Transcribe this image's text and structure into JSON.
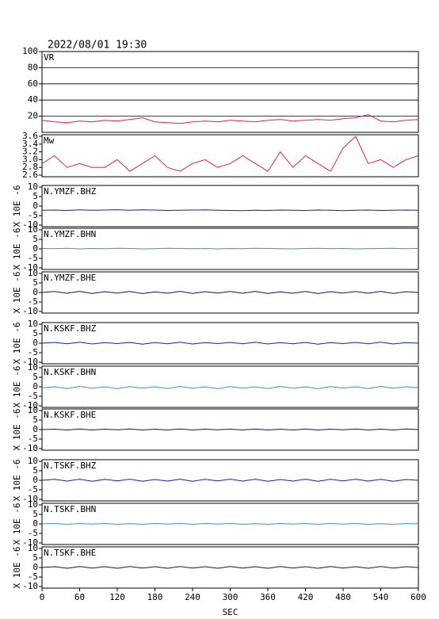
{
  "chart_data": [
    {
      "type": "line",
      "title": "2022/08/01 19:30",
      "label": "VR",
      "ylim": [
        0,
        100
      ],
      "yticks": [
        20,
        40,
        60,
        80,
        100
      ],
      "grid": true,
      "color": "#e0204f",
      "x": [
        0,
        20,
        40,
        60,
        80,
        100,
        120,
        140,
        160,
        180,
        200,
        220,
        240,
        260,
        280,
        300,
        320,
        340,
        360,
        380,
        400,
        420,
        440,
        460,
        480,
        500,
        520,
        540,
        560,
        580,
        600
      ],
      "values": [
        15,
        13,
        12,
        14,
        13,
        15,
        14,
        16,
        18,
        13,
        12,
        11,
        13,
        14,
        13,
        15,
        14,
        13,
        15,
        16,
        14,
        15,
        16,
        15,
        17,
        18,
        22,
        14,
        13,
        15,
        16
      ]
    },
    {
      "type": "line",
      "label": "Mw",
      "ylim": [
        2.6,
        3.6
      ],
      "yticks": [
        2.6,
        2.8,
        {
          "value": 3,
          "label": "3.0"
        },
        3.2,
        3.4,
        3.6
      ],
      "grid": false,
      "color": "#e0204f",
      "x": [
        0,
        20,
        40,
        60,
        80,
        100,
        120,
        140,
        160,
        180,
        200,
        220,
        240,
        260,
        280,
        300,
        320,
        340,
        360,
        380,
        400,
        420,
        440,
        460,
        480,
        500,
        520,
        540,
        560,
        580,
        600
      ],
      "values": [
        2.9,
        3.1,
        2.8,
        2.9,
        2.8,
        2.8,
        3.0,
        2.7,
        2.9,
        3.1,
        2.8,
        2.7,
        2.9,
        3.0,
        2.8,
        2.9,
        3.1,
        2.9,
        2.7,
        3.2,
        2.8,
        3.1,
        2.9,
        2.7,
        3.3,
        3.6,
        2.9,
        3.0,
        2.8,
        3.0,
        3.1
      ]
    },
    {
      "type": "line",
      "label": "N.YMZF.BHZ",
      "ylabel": "X 10E -6",
      "ylim": [
        -10,
        10
      ],
      "yticks": [
        -10,
        -5,
        0,
        5,
        10
      ],
      "color": "#1c1ca8",
      "x": [
        0,
        20,
        40,
        60,
        80,
        100,
        120,
        140,
        160,
        180,
        200,
        220,
        240,
        260,
        280,
        300,
        320,
        340,
        360,
        380,
        400,
        420,
        440,
        460,
        480,
        500,
        520,
        540,
        560,
        580,
        600
      ],
      "values": [
        -2.2,
        -2.1,
        -2.3,
        -2.0,
        -2.2,
        -2.1,
        -1.9,
        -2.2,
        -2.0,
        -2.1,
        -2.3,
        -2.2,
        -2.1,
        -2.0,
        -2.2,
        -2.3,
        -2.4,
        -2.2,
        -2.3,
        -2.1,
        -2.2,
        -2.3,
        -2.1,
        -2.2,
        -2.4,
        -2.2,
        -2.1,
        -2.3,
        -2.2,
        -2.1,
        -2.2
      ]
    },
    {
      "type": "line",
      "label": "N.YMZF.BHN",
      "ylabel": "X 10E -6",
      "ylim": [
        -10,
        10
      ],
      "yticks": [
        -10,
        -5,
        0,
        5,
        10
      ],
      "color": "#3a8ee0",
      "x": [
        0,
        20,
        40,
        60,
        80,
        100,
        120,
        140,
        160,
        180,
        200,
        220,
        240,
        260,
        280,
        300,
        320,
        340,
        360,
        380,
        400,
        420,
        440,
        460,
        480,
        500,
        520,
        540,
        560,
        580,
        600
      ],
      "values": [
        0.2,
        0.1,
        0.3,
        0.0,
        0.2,
        0.1,
        0.3,
        0.2,
        0.0,
        0.1,
        0.3,
        0.2,
        0.1,
        0.2,
        0.0,
        0.2,
        0.1,
        0.3,
        0.2,
        0.1,
        0.0,
        0.2,
        0.3,
        0.1,
        0.2,
        0.0,
        0.1,
        0.2,
        0.3,
        0.1,
        0.2
      ]
    },
    {
      "type": "line",
      "label": "N.YMZF.BHE",
      "ylabel": "X 10E -6",
      "ylim": [
        -10,
        10
      ],
      "yticks": [
        -10,
        -5,
        0,
        5,
        10
      ],
      "color": "#14145c",
      "x": [
        0,
        20,
        40,
        60,
        80,
        100,
        120,
        140,
        160,
        180,
        200,
        220,
        240,
        260,
        280,
        300,
        320,
        340,
        360,
        380,
        400,
        420,
        440,
        460,
        480,
        500,
        520,
        540,
        560,
        580,
        600
      ],
      "values": [
        0.0,
        0.5,
        -0.4,
        0.6,
        -0.5,
        0.4,
        -0.3,
        0.5,
        -0.6,
        0.3,
        -0.4,
        0.6,
        -0.5,
        0.4,
        -0.3,
        0.5,
        -0.4,
        0.6,
        -0.5,
        0.3,
        -0.4,
        0.5,
        -0.6,
        0.4,
        -0.3,
        0.5,
        -0.4,
        0.6,
        -0.5,
        0.4,
        0.0
      ]
    },
    {
      "type": "line",
      "label": "N.KSKF.BHZ",
      "ylabel": "X 10E -6",
      "ylim": [
        -10,
        10
      ],
      "yticks": [
        -10,
        -5,
        0,
        5,
        10
      ],
      "color": "#1c1ca8",
      "x": [
        0,
        20,
        40,
        60,
        80,
        100,
        120,
        140,
        160,
        180,
        200,
        220,
        240,
        260,
        280,
        300,
        320,
        340,
        360,
        380,
        400,
        420,
        440,
        460,
        480,
        500,
        520,
        540,
        560,
        580,
        600
      ],
      "values": [
        0.0,
        0.4,
        -0.3,
        0.5,
        -0.4,
        0.3,
        -0.2,
        0.4,
        -0.5,
        0.3,
        -0.3,
        0.5,
        -0.4,
        0.3,
        -0.2,
        0.4,
        -0.3,
        0.5,
        -0.4,
        0.3,
        -0.3,
        0.4,
        -0.5,
        0.3,
        -0.2,
        0.4,
        -0.3,
        0.5,
        -0.4,
        0.3,
        0.0
      ]
    },
    {
      "type": "line",
      "label": "N.KSKF.BHN",
      "ylabel": "X 10E -6",
      "ylim": [
        -10,
        10
      ],
      "yticks": [
        -10,
        -5,
        0,
        5,
        10
      ],
      "color": "#3a8ee0",
      "x": [
        0,
        20,
        40,
        60,
        80,
        100,
        120,
        140,
        160,
        180,
        200,
        220,
        240,
        260,
        280,
        300,
        320,
        340,
        360,
        380,
        400,
        420,
        440,
        460,
        480,
        500,
        520,
        540,
        560,
        580,
        600
      ],
      "values": [
        -0.5,
        0.0,
        -0.9,
        0.2,
        -0.8,
        0.0,
        -1.0,
        0.1,
        -0.7,
        0.0,
        -0.9,
        0.2,
        -0.8,
        0.0,
        -1.0,
        0.1,
        -0.7,
        0.0,
        -0.9,
        0.2,
        -0.8,
        0.0,
        -1.0,
        0.1,
        -0.7,
        0.0,
        -0.9,
        0.2,
        -0.8,
        0.0,
        -0.5
      ]
    },
    {
      "type": "line",
      "label": "N.KSKF.BHE",
      "ylabel": "X 10E -6",
      "ylim": [
        -10,
        10
      ],
      "yticks": [
        -10,
        -5,
        0,
        5,
        10
      ],
      "color": "#14145c",
      "x": [
        0,
        20,
        40,
        60,
        80,
        100,
        120,
        140,
        160,
        180,
        200,
        220,
        240,
        260,
        280,
        300,
        320,
        340,
        360,
        380,
        400,
        420,
        440,
        460,
        480,
        500,
        520,
        540,
        560,
        580,
        600
      ],
      "values": [
        0.0,
        0.2,
        -0.2,
        0.3,
        -0.2,
        0.2,
        -0.1,
        0.3,
        -0.2,
        0.2,
        -0.2,
        0.3,
        -0.2,
        0.2,
        -0.1,
        0.2,
        -0.2,
        0.3,
        -0.2,
        0.2,
        -0.2,
        0.3,
        -0.2,
        0.2,
        -0.1,
        0.3,
        -0.2,
        0.2,
        -0.2,
        0.3,
        0.0
      ]
    },
    {
      "type": "line",
      "label": "N.TSKF.BHZ",
      "ylabel": "X 10E -6",
      "ylim": [
        -10,
        10
      ],
      "yticks": [
        -10,
        -5,
        0,
        5,
        10
      ],
      "color": "#1c1ca8",
      "x": [
        0,
        20,
        40,
        60,
        80,
        100,
        120,
        140,
        160,
        180,
        200,
        220,
        240,
        260,
        280,
        300,
        320,
        340,
        360,
        380,
        400,
        420,
        440,
        460,
        480,
        500,
        520,
        540,
        560,
        580,
        600
      ],
      "values": [
        0.0,
        0.5,
        -0.4,
        0.6,
        -0.5,
        0.5,
        -0.3,
        0.6,
        -0.5,
        0.4,
        -0.4,
        0.6,
        -0.5,
        0.5,
        -0.3,
        0.6,
        -0.4,
        0.6,
        -0.5,
        0.4,
        -0.4,
        0.6,
        -0.5,
        0.5,
        -0.3,
        0.6,
        -0.4,
        0.5,
        -0.5,
        0.4,
        0.0
      ]
    },
    {
      "type": "line",
      "label": "N.TSKF.BHN",
      "ylabel": "X 10E -6",
      "ylim": [
        -10,
        10
      ],
      "yticks": [
        -10,
        -5,
        0,
        5,
        10
      ],
      "color": "#3a8ee0",
      "x": [
        0,
        20,
        40,
        60,
        80,
        100,
        120,
        140,
        160,
        180,
        200,
        220,
        240,
        260,
        280,
        300,
        320,
        340,
        360,
        380,
        400,
        420,
        440,
        460,
        480,
        500,
        520,
        540,
        560,
        580,
        600
      ],
      "values": [
        0.0,
        0.2,
        -0.2,
        0.2,
        -0.1,
        0.2,
        -0.2,
        0.1,
        -0.2,
        0.2,
        -0.1,
        0.2,
        -0.2,
        0.2,
        -0.1,
        0.2,
        -0.2,
        0.1,
        -0.2,
        0.2,
        -0.1,
        0.2,
        -0.2,
        0.2,
        -0.1,
        0.2,
        -0.2,
        0.1,
        -0.2,
        0.2,
        0.0
      ]
    },
    {
      "type": "line",
      "label": "N.TSKF.BHE",
      "ylabel": "X 10E -6",
      "ylim": [
        -10,
        10
      ],
      "yticks": [
        -10,
        -5,
        0,
        5,
        10
      ],
      "color": "#14145c",
      "xlabel": "SEC",
      "xlim": [
        0,
        600
      ],
      "xticks": [
        0,
        60,
        120,
        180,
        240,
        300,
        360,
        420,
        480,
        540,
        600
      ],
      "x": [
        0,
        20,
        40,
        60,
        80,
        100,
        120,
        140,
        160,
        180,
        200,
        220,
        240,
        260,
        280,
        300,
        320,
        340,
        360,
        380,
        400,
        420,
        440,
        460,
        480,
        500,
        520,
        540,
        560,
        580,
        600
      ],
      "values": [
        0.0,
        0.4,
        -0.4,
        0.5,
        -0.3,
        0.4,
        -0.4,
        0.5,
        -0.3,
        0.4,
        -0.4,
        0.5,
        -0.3,
        0.4,
        -0.4,
        0.5,
        -0.3,
        0.4,
        -0.4,
        0.5,
        -0.3,
        0.4,
        -0.4,
        0.5,
        -0.3,
        0.4,
        -0.4,
        0.5,
        -0.3,
        0.4,
        0.0
      ]
    }
  ]
}
